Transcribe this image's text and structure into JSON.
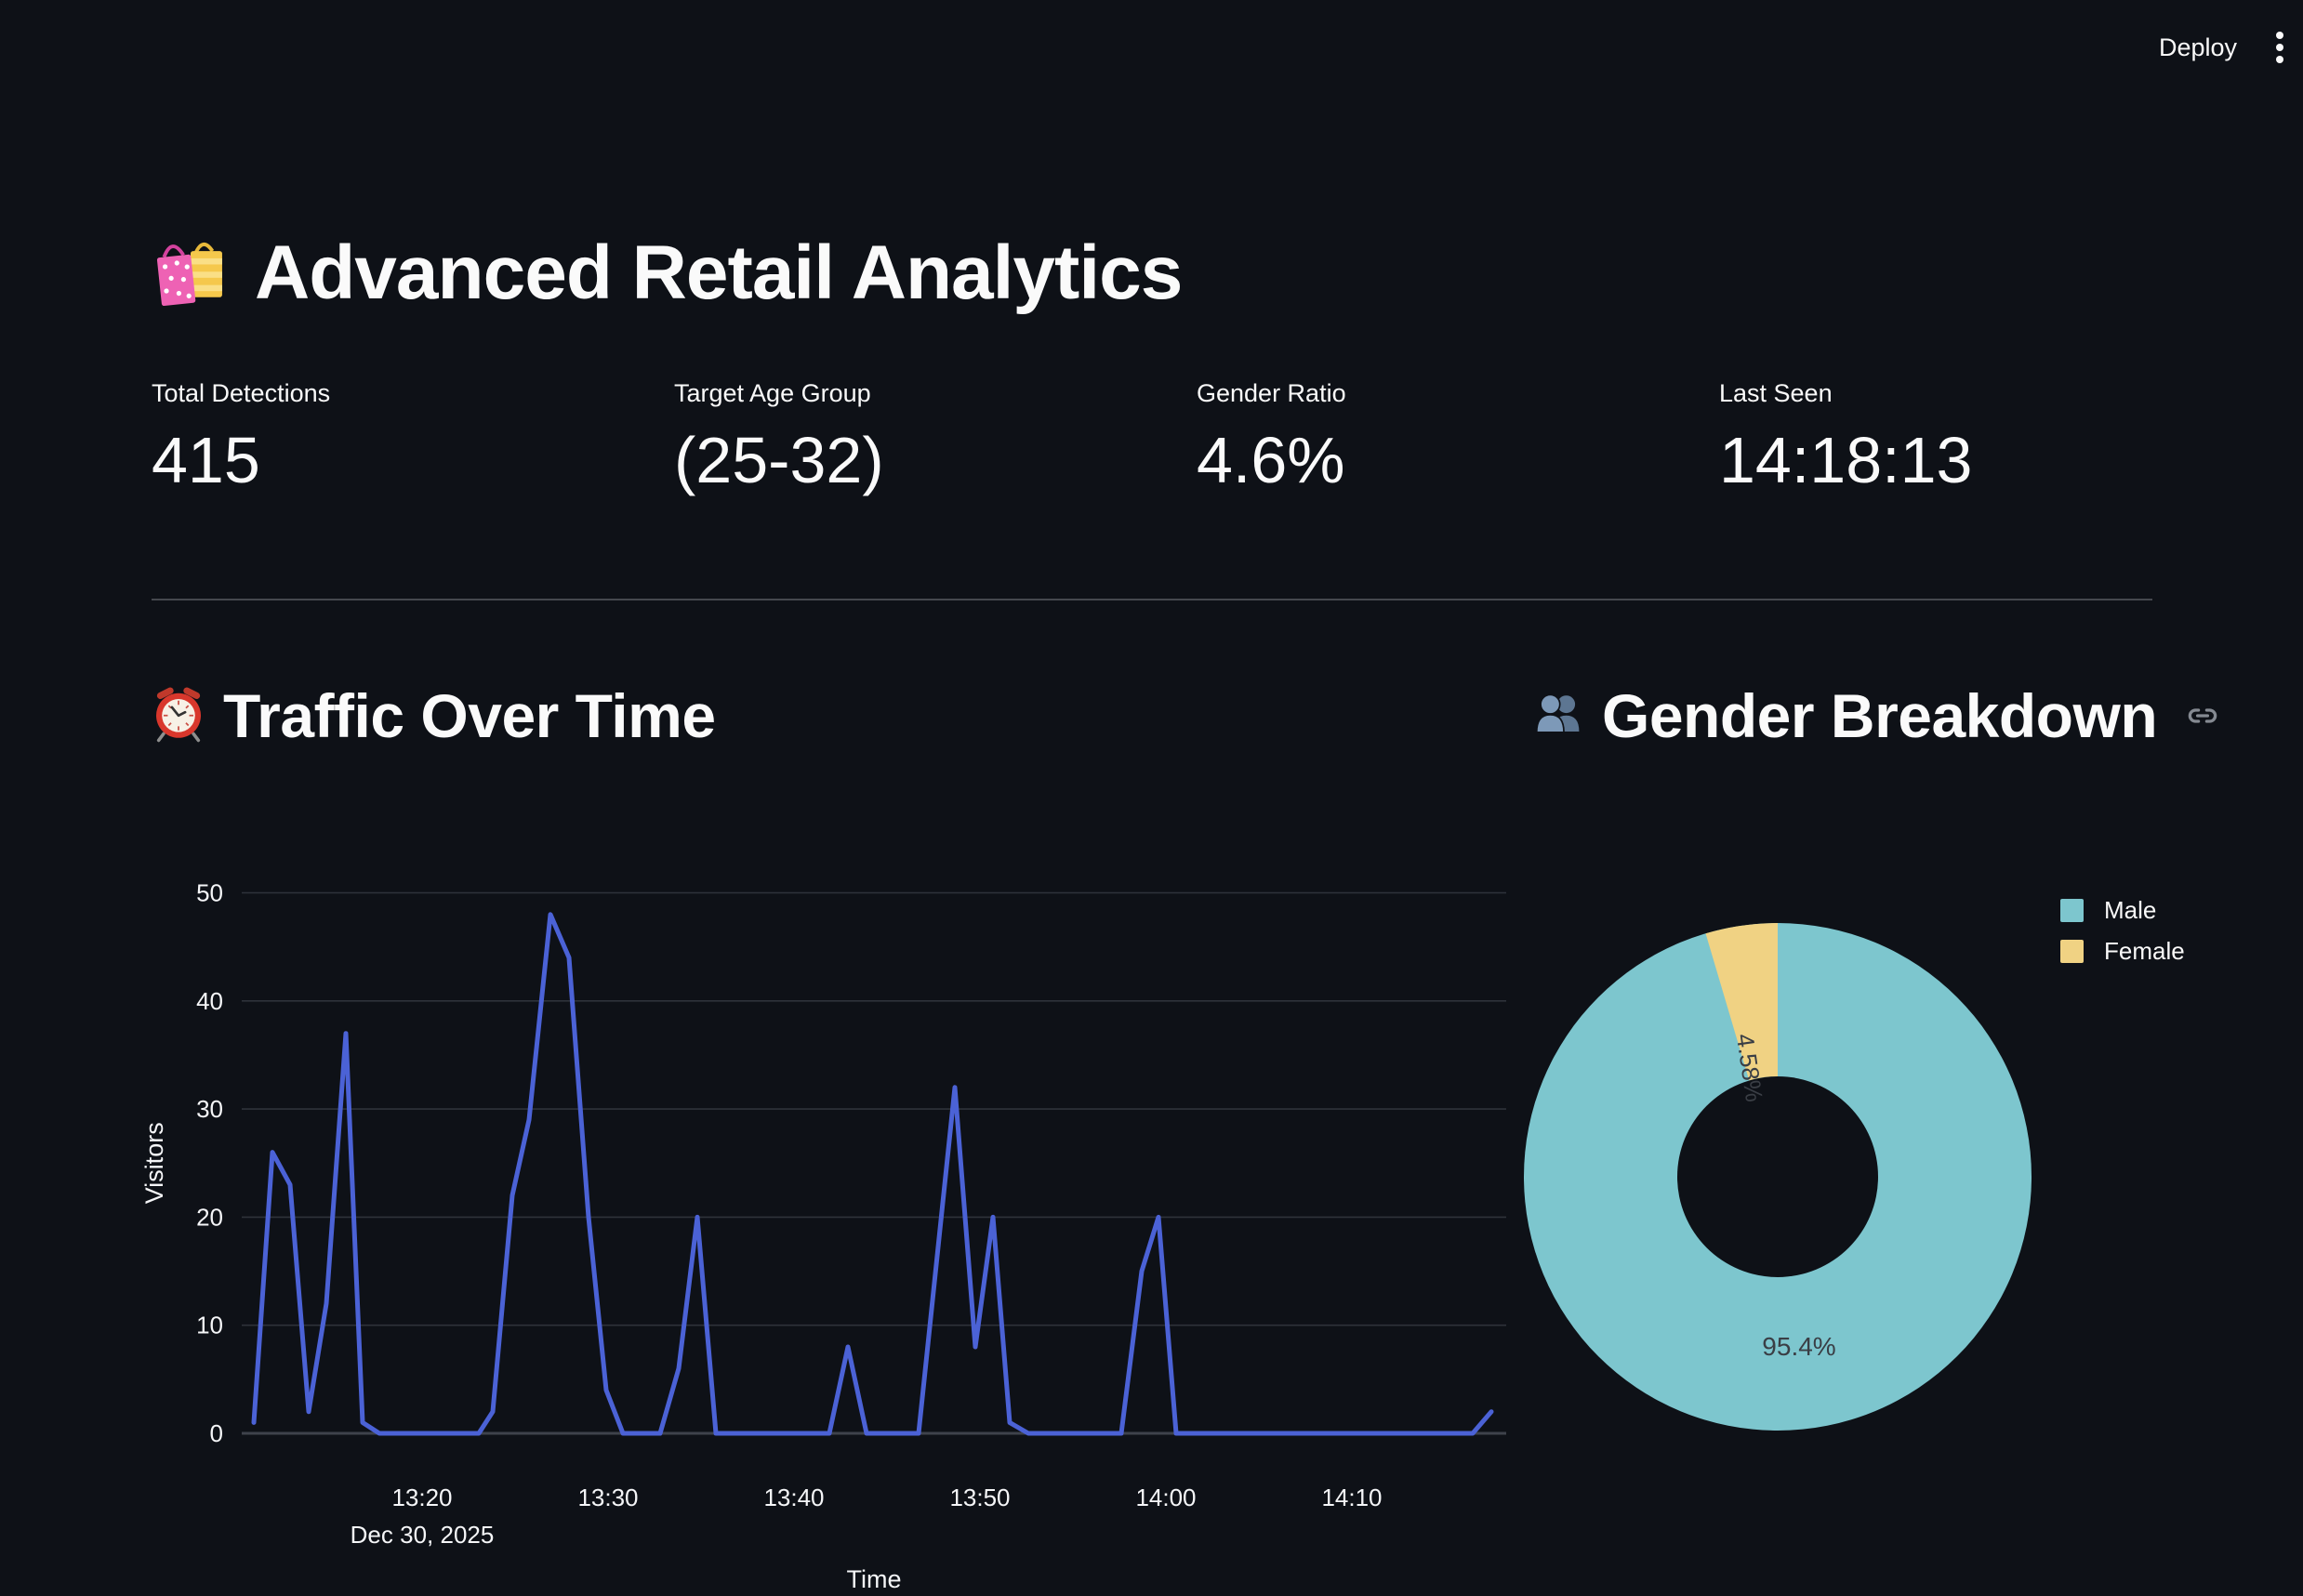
{
  "toolbar": {
    "deploy_label": "Deploy"
  },
  "page": {
    "title": "Advanced Retail Analytics"
  },
  "metrics": [
    {
      "label": "Total Detections",
      "value": "415"
    },
    {
      "label": "Target Age Group",
      "value": "(25-32)"
    },
    {
      "label": "Gender Ratio",
      "value": "4.6%"
    },
    {
      "label": "Last Seen",
      "value": "14:18:13"
    }
  ],
  "sections": [
    {
      "title": "Traffic Over Time"
    },
    {
      "title": "Gender Breakdown"
    }
  ],
  "colors": {
    "background": "#0e1117",
    "text": "#fafafa",
    "gridline": "#2e323a",
    "zeroline": "#3e424b",
    "divider": "#45484e",
    "line_blue": "#4b62d6",
    "pie_male_teal": "#7dc6ce",
    "pie_female_yellow": "#f0d283",
    "pie_label_dark": "#3a3e45"
  },
  "chart_data": [
    {
      "type": "line",
      "title": "Traffic Over Time",
      "xlabel": "Time",
      "ylabel": "Visitors",
      "x_axis_date": "Dec 30, 2025",
      "x_unit": "minutes after 13:00",
      "x_domain": [
        10.3,
        78.3
      ],
      "ylim": [
        0,
        50
      ],
      "y_ticks": [
        0,
        10,
        20,
        30,
        40,
        50
      ],
      "x_ticks": [
        {
          "t": 20,
          "label": "13:20"
        },
        {
          "t": 30,
          "label": "13:30"
        },
        {
          "t": 40,
          "label": "13:40"
        },
        {
          "t": 50,
          "label": "13:50"
        },
        {
          "t": 60,
          "label": "14:00"
        },
        {
          "t": 70,
          "label": "14:10"
        }
      ],
      "grid": "horizontal",
      "legend": "none",
      "series": [
        {
          "name": "Visitors",
          "points": [
            [
              10.95,
              1
            ],
            [
              11.95,
              26
            ],
            [
              12.9,
              23
            ],
            [
              13.9,
              2
            ],
            [
              14.85,
              12
            ],
            [
              15.9,
              37
            ],
            [
              16.8,
              1
            ],
            [
              17.7,
              0
            ],
            [
              23.05,
              0
            ],
            [
              23.8,
              2
            ],
            [
              24.85,
              22
            ],
            [
              25.75,
              29
            ],
            [
              26.9,
              48
            ],
            [
              27.9,
              44
            ],
            [
              28.95,
              20
            ],
            [
              29.9,
              4
            ],
            [
              30.8,
              0
            ],
            [
              32.8,
              0
            ],
            [
              33.8,
              6
            ],
            [
              34.8,
              20
            ],
            [
              35.8,
              0
            ],
            [
              41.9,
              0
            ],
            [
              42.9,
              8
            ],
            [
              43.9,
              0
            ],
            [
              46.7,
              0
            ],
            [
              48.65,
              32
            ],
            [
              49.75,
              8
            ],
            [
              50.7,
              20
            ],
            [
              51.6,
              1
            ],
            [
              52.6,
              0
            ],
            [
              57.6,
              0
            ],
            [
              58.7,
              15
            ],
            [
              59.6,
              20
            ],
            [
              60.55,
              0
            ],
            [
              76.5,
              0
            ],
            [
              77.5,
              2
            ]
          ]
        }
      ]
    },
    {
      "type": "pie",
      "title": "Gender Breakdown",
      "labels": [
        "Male",
        "Female"
      ],
      "values": [
        95.42,
        4.58
      ],
      "slice_labels": [
        "95.4%",
        "4.58%"
      ],
      "colors": [
        "#7dc6ce",
        "#f0d283"
      ],
      "hole": 0.4,
      "legend_position": "top-right"
    }
  ]
}
